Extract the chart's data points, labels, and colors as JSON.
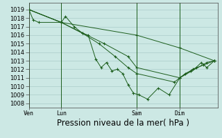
{
  "background_color": "#cce8e4",
  "grid_color": "#aaccca",
  "line_color": "#1a5c1a",
  "marker_color": "#1a5c1a",
  "ylim": [
    1007.5,
    1019.8
  ],
  "yticks": [
    1008,
    1009,
    1010,
    1011,
    1012,
    1013,
    1014,
    1015,
    1016,
    1017,
    1018,
    1019
  ],
  "xlabel": "Pression niveau de la mer( hPa )",
  "xlabel_fontsize": 8.5,
  "tick_fontsize": 6,
  "xlim": [
    0.0,
    17.5
  ],
  "vlines_x": [
    0.0,
    3.0,
    10.0,
    14.0
  ],
  "vline_labels": [
    "Ven",
    "Lun",
    "Sam",
    "Dim"
  ],
  "series": [
    {
      "x": [
        0.0,
        0.4,
        0.9,
        3.0,
        3.4,
        4.2,
        5.0,
        5.5,
        6.2,
        6.7,
        7.2,
        7.7,
        8.2,
        8.7,
        9.2,
        9.7,
        10.2,
        11.0,
        12.0,
        13.0,
        14.0,
        14.5,
        15.0,
        15.5,
        16.0,
        16.5,
        17.2
      ],
      "y": [
        1019.0,
        1017.8,
        1017.5,
        1017.5,
        1018.2,
        1017.0,
        1016.2,
        1016.0,
        1013.2,
        1012.2,
        1012.8,
        1011.8,
        1012.0,
        1011.5,
        1010.2,
        1009.2,
        1009.0,
        1008.5,
        1009.8,
        1009.0,
        1011.0,
        1011.5,
        1011.8,
        1012.2,
        1012.8,
        1012.2,
        1013.0
      ]
    },
    {
      "x": [
        0.0,
        3.0,
        5.0,
        6.5,
        8.0,
        9.2,
        10.0,
        13.5,
        14.0,
        15.2,
        16.2,
        17.2
      ],
      "y": [
        1019.0,
        1017.5,
        1016.2,
        1015.0,
        1013.5,
        1012.2,
        1011.5,
        1010.5,
        1011.0,
        1012.0,
        1012.5,
        1013.0
      ]
    },
    {
      "x": [
        0.0,
        3.0,
        7.0,
        9.2,
        10.0,
        14.0,
        16.5,
        17.2
      ],
      "y": [
        1019.0,
        1017.5,
        1015.0,
        1013.5,
        1012.2,
        1011.0,
        1012.8,
        1013.0
      ]
    },
    {
      "x": [
        0.0,
        3.0,
        10.0,
        14.0,
        17.2
      ],
      "y": [
        1019.0,
        1017.5,
        1016.0,
        1014.5,
        1013.0
      ]
    }
  ]
}
